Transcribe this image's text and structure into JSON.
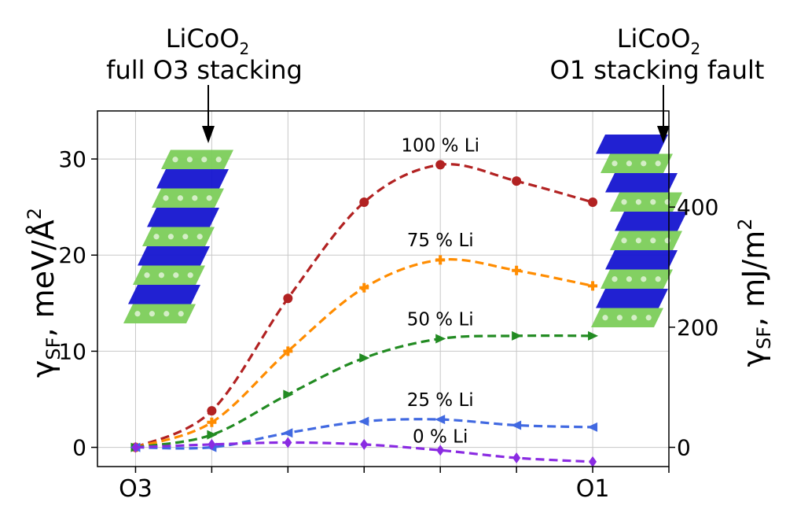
{
  "annotations": {
    "left_top": "LiCoO",
    "left_sub": "2",
    "left_bottom": "full O3 stacking",
    "right_top": "LiCoO",
    "right_sub": "2",
    "right_bottom": "O1 stacking fault"
  },
  "axes": {
    "ylabel_left_main": "γ",
    "ylabel_left_sub": "SF",
    "ylabel_left_rest": ", meV/Å",
    "ylabel_left_sup": "2",
    "ylabel_right_main": "γ",
    "ylabel_right_sub": "SF",
    "ylabel_right_rest": ", mJ/m",
    "ylabel_right_sup": "2"
  },
  "colors": {
    "100": "#b22222",
    "75": "#ff8c00",
    "50": "#228b22",
    "25": "#4169e1",
    "0": "#8a2be2",
    "structure_green": "#7ccd5a",
    "structure_blue": "#1515d0"
  },
  "chart_data": {
    "type": "line",
    "x": [
      0,
      1,
      2,
      3,
      4,
      5,
      6
    ],
    "xticks": [
      {
        "x": 0,
        "label": "O3"
      },
      {
        "x": 6,
        "label": "O1"
      }
    ],
    "xlim": [
      -0.5,
      7
    ],
    "ylim": [
      -2,
      35
    ],
    "yticks": [
      0,
      10,
      20,
      30
    ],
    "ylim_right_mJ_per_m2": [
      -32,
      560
    ],
    "yticks_right": [
      {
        "label": "0"
      },
      {
        "label": "200"
      },
      {
        "label": "400"
      }
    ],
    "grid": true,
    "series": [
      {
        "name": "100 % Li",
        "key": "100",
        "marker": "circle",
        "values": [
          0,
          3.8,
          15.5,
          25.5,
          29.4,
          27.7,
          25.5
        ]
      },
      {
        "name": "75 % Li",
        "key": "75",
        "marker": "plus",
        "values": [
          0,
          2.6,
          10.0,
          16.6,
          19.5,
          18.4,
          16.8
        ]
      },
      {
        "name": "50 % Li",
        "key": "50",
        "marker": "triangle-right",
        "values": [
          0,
          1.3,
          5.5,
          9.3,
          11.3,
          11.6,
          11.6
        ]
      },
      {
        "name": "25 % Li",
        "key": "25",
        "marker": "triangle-left",
        "values": [
          0,
          0.0,
          1.5,
          2.7,
          2.9,
          2.3,
          2.1
        ]
      },
      {
        "name": "0 % Li",
        "key": "0",
        "marker": "diamond",
        "values": [
          0,
          0.3,
          0.5,
          0.3,
          -0.3,
          -1.1,
          -1.5
        ]
      }
    ]
  }
}
